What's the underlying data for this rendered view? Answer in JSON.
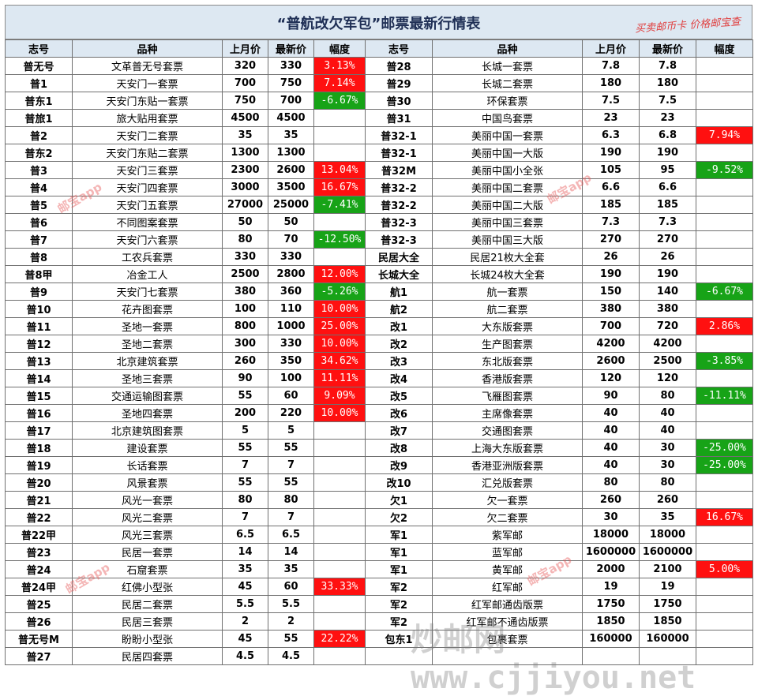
{
  "title": "“普航改欠军包”邮票最新行情表",
  "promo": "买卖邮币卡 价格邮宝查",
  "headers": [
    "志号",
    "品种",
    "上月价",
    "最新价",
    "幅度",
    "志号",
    "品种",
    "上月价",
    "最新价",
    "幅度"
  ],
  "colors": {
    "up": "#ff1010",
    "down": "#17a317",
    "header": "#dde8f2"
  },
  "watermarks": [
    "邮宝app",
    "邮宝app",
    "邮宝app",
    "邮宝app"
  ],
  "watermark_site": "炒邮网 www.cjjiyou.net",
  "rows": [
    [
      [
        "普无号",
        "文革普无号套票",
        "320",
        "330",
        "3.13%",
        "up"
      ],
      [
        "普28",
        "长城一套票",
        "7.8",
        "7.8",
        "",
        ""
      ]
    ],
    [
      [
        "普1",
        "天安门一套票",
        "700",
        "750",
        "7.14%",
        "up"
      ],
      [
        "普29",
        "长城二套票",
        "180",
        "180",
        "",
        ""
      ]
    ],
    [
      [
        "普东1",
        "天安门东贴一套票",
        "750",
        "700",
        "-6.67%",
        "down"
      ],
      [
        "普30",
        "环保套票",
        "7.5",
        "7.5",
        "",
        ""
      ]
    ],
    [
      [
        "普旅1",
        "旅大贴用套票",
        "4500",
        "4500",
        "",
        ""
      ],
      [
        "普31",
        "中国鸟套票",
        "23",
        "23",
        "",
        ""
      ]
    ],
    [
      [
        "普2",
        "天安门二套票",
        "35",
        "35",
        "",
        ""
      ],
      [
        "普32-1",
        "美丽中国一套票",
        "6.3",
        "6.8",
        "7.94%",
        "up"
      ]
    ],
    [
      [
        "普东2",
        "天安门东贴二套票",
        "1300",
        "1300",
        "",
        ""
      ],
      [
        "普32-1",
        "美丽中国一大版",
        "190",
        "190",
        "",
        ""
      ]
    ],
    [
      [
        "普3",
        "天安门三套票",
        "2300",
        "2600",
        "13.04%",
        "up"
      ],
      [
        "普32M",
        "美丽中国小全张",
        "105",
        "95",
        "-9.52%",
        "down"
      ]
    ],
    [
      [
        "普4",
        "天安门四套票",
        "3000",
        "3500",
        "16.67%",
        "up"
      ],
      [
        "普32-2",
        "美丽中国二套票",
        "6.6",
        "6.6",
        "",
        ""
      ]
    ],
    [
      [
        "普5",
        "天安门五套票",
        "27000",
        "25000",
        "-7.41%",
        "down"
      ],
      [
        "普32-2",
        "美丽中国二大版",
        "185",
        "185",
        "",
        ""
      ]
    ],
    [
      [
        "普6",
        "不同图案套票",
        "50",
        "50",
        "",
        ""
      ],
      [
        "普32-3",
        "美丽中国三套票",
        "7.3",
        "7.3",
        "",
        ""
      ]
    ],
    [
      [
        "普7",
        "天安门六套票",
        "80",
        "70",
        "-12.50%",
        "down"
      ],
      [
        "普32-3",
        "美丽中国三大版",
        "270",
        "270",
        "",
        ""
      ]
    ],
    [
      [
        "普8",
        "工农兵套票",
        "330",
        "330",
        "",
        ""
      ],
      [
        "民居大全",
        "民居21枚大全套",
        "26",
        "26",
        "",
        ""
      ]
    ],
    [
      [
        "普8甲",
        "冶金工人",
        "2500",
        "2800",
        "12.00%",
        "up"
      ],
      [
        "长城大全",
        "长城24枚大全套",
        "190",
        "190",
        "",
        ""
      ]
    ],
    [
      [
        "普9",
        "天安门七套票",
        "380",
        "360",
        "-5.26%",
        "down"
      ],
      [
        "航1",
        "航一套票",
        "150",
        "140",
        "-6.67%",
        "down"
      ]
    ],
    [
      [
        "普10",
        "花卉图套票",
        "100",
        "110",
        "10.00%",
        "up"
      ],
      [
        "航2",
        "航二套票",
        "380",
        "380",
        "",
        ""
      ]
    ],
    [
      [
        "普11",
        "圣地一套票",
        "800",
        "1000",
        "25.00%",
        "up"
      ],
      [
        "改1",
        "大东版套票",
        "700",
        "720",
        "2.86%",
        "up"
      ]
    ],
    [
      [
        "普12",
        "圣地二套票",
        "300",
        "330",
        "10.00%",
        "up"
      ],
      [
        "改2",
        "生产图套票",
        "4200",
        "4200",
        "",
        ""
      ]
    ],
    [
      [
        "普13",
        "北京建筑套票",
        "260",
        "350",
        "34.62%",
        "up"
      ],
      [
        "改3",
        "东北版套票",
        "2600",
        "2500",
        "-3.85%",
        "down"
      ]
    ],
    [
      [
        "普14",
        "圣地三套票",
        "90",
        "100",
        "11.11%",
        "up"
      ],
      [
        "改4",
        "香港版套票",
        "120",
        "120",
        "",
        ""
      ]
    ],
    [
      [
        "普15",
        "交通运输图套票",
        "55",
        "60",
        "9.09%",
        "up"
      ],
      [
        "改5",
        "飞雁图套票",
        "90",
        "80",
        "-11.11%",
        "down"
      ]
    ],
    [
      [
        "普16",
        "圣地四套票",
        "200",
        "220",
        "10.00%",
        "up"
      ],
      [
        "改6",
        "主席像套票",
        "40",
        "40",
        "",
        ""
      ]
    ],
    [
      [
        "普17",
        "北京建筑图套票",
        "5",
        "5",
        "",
        ""
      ],
      [
        "改7",
        "交通图套票",
        "40",
        "40",
        "",
        ""
      ]
    ],
    [
      [
        "普18",
        "建设套票",
        "55",
        "55",
        "",
        ""
      ],
      [
        "改8",
        "上海大东版套票",
        "40",
        "30",
        "-25.00%",
        "down"
      ]
    ],
    [
      [
        "普19",
        "长话套票",
        "7",
        "7",
        "",
        ""
      ],
      [
        "改9",
        "香港亚洲版套票",
        "40",
        "30",
        "-25.00%",
        "down"
      ]
    ],
    [
      [
        "普20",
        "风景套票",
        "55",
        "55",
        "",
        ""
      ],
      [
        "改10",
        "汇兑版套票",
        "80",
        "80",
        "",
        ""
      ]
    ],
    [
      [
        "普21",
        "风光一套票",
        "80",
        "80",
        "",
        ""
      ],
      [
        "欠1",
        "欠一套票",
        "260",
        "260",
        "",
        ""
      ]
    ],
    [
      [
        "普22",
        "风光二套票",
        "7",
        "7",
        "",
        ""
      ],
      [
        "欠2",
        "欠二套票",
        "30",
        "35",
        "16.67%",
        "up"
      ]
    ],
    [
      [
        "普22甲",
        "风光三套票",
        "6.5",
        "6.5",
        "",
        ""
      ],
      [
        "军1",
        "紫军邮",
        "18000",
        "18000",
        "",
        ""
      ]
    ],
    [
      [
        "普23",
        "民居一套票",
        "14",
        "14",
        "",
        ""
      ],
      [
        "军1",
        "蓝军邮",
        "1600000",
        "1600000",
        "",
        ""
      ]
    ],
    [
      [
        "普24",
        "石窟套票",
        "35",
        "35",
        "",
        ""
      ],
      [
        "军1",
        "黄军邮",
        "2000",
        "2100",
        "5.00%",
        "up"
      ]
    ],
    [
      [
        "普24甲",
        "红佛小型张",
        "45",
        "60",
        "33.33%",
        "up"
      ],
      [
        "军2",
        "红军邮",
        "19",
        "19",
        "",
        ""
      ]
    ],
    [
      [
        "普25",
        "民居二套票",
        "5.5",
        "5.5",
        "",
        ""
      ],
      [
        "军2",
        "红军邮通齿版票",
        "1750",
        "1750",
        "",
        ""
      ]
    ],
    [
      [
        "普26",
        "民居三套票",
        "2",
        "2",
        "",
        ""
      ],
      [
        "军2",
        "红军邮不通齿版票",
        "1850",
        "1850",
        "",
        ""
      ]
    ],
    [
      [
        "普无号M",
        "盼盼小型张",
        "45",
        "55",
        "22.22%",
        "up"
      ],
      [
        "包东1",
        "包裹套票",
        "160000",
        "160000",
        "",
        ""
      ]
    ],
    [
      [
        "普27",
        "民居四套票",
        "4.5",
        "4.5",
        "",
        ""
      ],
      [
        "",
        "",
        "",
        "",
        "",
        ""
      ]
    ]
  ]
}
